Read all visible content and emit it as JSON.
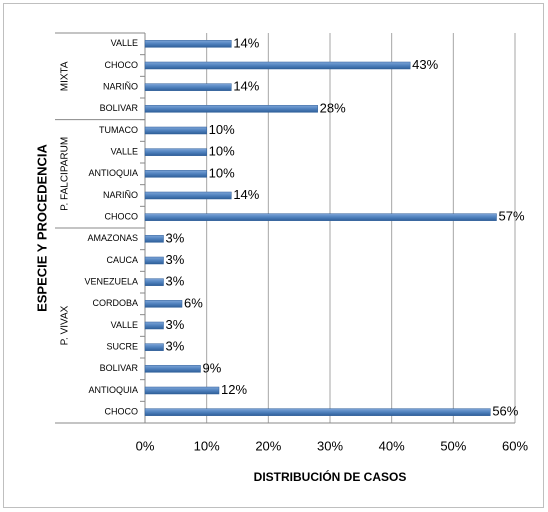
{
  "chart_data": {
    "type": "bar",
    "orientation": "horizontal",
    "y_axis_title": "ESPECIE Y PROCEDENCIA",
    "x_axis_title": "DISTRIBUCIÓN DE CASOS",
    "color": "#4f81bd",
    "groups": [
      {
        "name": "MIXTA",
        "categories": [
          "VALLE",
          "CHOCO",
          "NARIÑO",
          "BOLIVAR"
        ],
        "values": [
          14,
          43,
          14,
          28
        ],
        "value_labels": [
          "14%",
          "43%",
          "14%",
          "28%"
        ]
      },
      {
        "name": "P. FALCIPARUM",
        "categories": [
          "TUMACO",
          "VALLE",
          "ANTIOQUIA",
          "NARIÑO",
          "CHOCO"
        ],
        "values": [
          10,
          10,
          10,
          14,
          57
        ],
        "value_labels": [
          "10%",
          "10%",
          "10%",
          "14%",
          "57%"
        ]
      },
      {
        "name": "P. VIVAX",
        "categories": [
          "AMAZONAS",
          "CAUCA",
          "VENEZUELA",
          "CORDOBA",
          "VALLE",
          "SUCRE",
          "BOLIVAR",
          "ANTIOQUIA",
          "CHOCO"
        ],
        "values": [
          3,
          3,
          3,
          6,
          3,
          3,
          9,
          12,
          56
        ],
        "value_labels": [
          "3%",
          "3%",
          "3%",
          "6%",
          "3%",
          "3%",
          "9%",
          "12%",
          "56%"
        ]
      }
    ],
    "xlim": [
      0,
      60
    ],
    "xticks": [
      {
        "value": 0,
        "label": "0%"
      },
      {
        "value": 10,
        "label": "10%"
      },
      {
        "value": 20,
        "label": "20%"
      },
      {
        "value": 30,
        "label": "30%"
      },
      {
        "value": 40,
        "label": "40%"
      },
      {
        "value": 50,
        "label": "50%"
      },
      {
        "value": 60,
        "label": "60%"
      }
    ],
    "grid": true
  }
}
